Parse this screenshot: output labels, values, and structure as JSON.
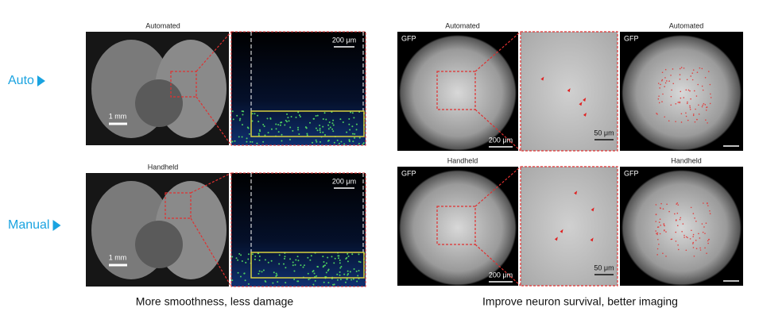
{
  "row_labels": [
    "Auto",
    "Manual"
  ],
  "left": {
    "rows": [
      {
        "title": "Automated",
        "scale_slice": "1 mm",
        "scale_zoom": "200 μm"
      },
      {
        "title": "Handheld",
        "scale_slice": "1 mm",
        "scale_zoom": "200 μm"
      }
    ],
    "caption": "More smoothness, less damage"
  },
  "right": {
    "rows": [
      {
        "title_left": "Automated",
        "title_right": "Automated",
        "gfp_left": "GFP",
        "gfp_right": "GFP",
        "scale_left": "200 μm",
        "scale_zoom": "50 μm"
      },
      {
        "title_left": "Handheld",
        "title_right": "Handheld",
        "gfp_left": "GFP",
        "gfp_right": "GFP",
        "scale_left": "200 μm",
        "scale_zoom": "50 μm"
      }
    ],
    "caption": "Improve neuron survival, better imaging"
  }
}
